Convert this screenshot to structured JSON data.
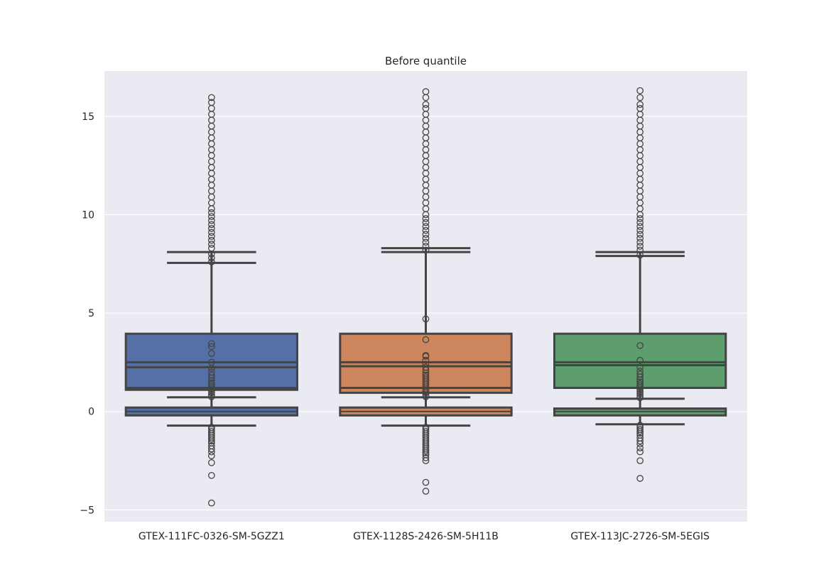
{
  "chart_data": {
    "type": "box",
    "title": "Before quantile",
    "xlabel": "",
    "ylabel": "",
    "ylim": [
      -5.6,
      17.3
    ],
    "yticks": [
      -5,
      0,
      5,
      10,
      15
    ],
    "ytick_labels": [
      "−5",
      "0",
      "5",
      "10",
      "15"
    ],
    "grid": true,
    "legend": "none",
    "box_edge_color": "#444444",
    "plot_background": "#eaeaf2",
    "categories": [
      "GTEX-111FC-0326-SM-5GZZ1",
      "GTEX-1128S-2426-SM-5H11B",
      "GTEX-113JC-2726-SM-5EGIS"
    ],
    "series": [
      {
        "category": "GTEX-111FC-0326-SM-5GZZ1",
        "color": "#5470a6",
        "upper_box": {
          "q1": 1.1,
          "median_low": 2.25,
          "median_high": 2.5,
          "q3": 3.95,
          "q1_inner": 1.2
        },
        "lower_box": {
          "q1": -0.2,
          "median": 0.0,
          "q3": 0.2
        },
        "whisker_high": 8.1,
        "whisker_high_inner": 7.55,
        "whisker_low": -0.72,
        "whisker_mid_low": 0.72,
        "outliers_high": [
          7.6,
          7.8,
          8.0,
          8.3,
          8.5,
          8.7,
          8.9,
          9.1,
          9.3,
          9.5,
          9.7,
          9.9,
          10.1,
          10.3,
          10.6,
          10.9,
          11.2,
          11.5,
          11.8,
          12.1,
          12.4,
          12.7,
          13.0,
          13.3,
          13.6,
          13.9,
          14.2,
          14.5,
          14.8,
          15.1,
          15.4,
          15.7,
          15.95
        ],
        "outliers_mid": [
          0.75,
          0.85,
          0.95,
          1.05,
          1.15,
          1.25,
          1.35,
          1.45,
          1.55,
          1.7,
          1.85,
          2.0,
          2.2,
          2.5,
          2.95,
          3.3,
          3.45
        ],
        "outliers_low": [
          -0.8,
          -0.9,
          -1.0,
          -1.1,
          -1.2,
          -1.3,
          -1.4,
          -1.5,
          -1.6,
          -1.75,
          -1.9,
          -2.05,
          -2.25,
          -2.6,
          -3.25,
          -4.65
        ]
      },
      {
        "category": "GTEX-1128S-2426-SM-5H11B",
        "color": "#cd865e",
        "upper_box": {
          "q1": 0.95,
          "median_low": 2.3,
          "median_high": 2.5,
          "q3": 3.95,
          "q1_inner": 1.2
        },
        "lower_box": {
          "q1": -0.2,
          "median": 0.0,
          "q3": 0.2
        },
        "whisker_high": 8.3,
        "whisker_high_inner": 8.1,
        "whisker_low": -0.72,
        "whisker_mid_low": 0.72,
        "outliers_high": [
          8.2,
          8.4,
          8.6,
          8.8,
          9.0,
          9.2,
          9.4,
          9.6,
          9.8,
          10.0,
          10.3,
          10.6,
          10.9,
          11.2,
          11.5,
          11.8,
          12.1,
          12.4,
          12.7,
          13.0,
          13.3,
          13.6,
          13.9,
          14.2,
          14.5,
          14.8,
          15.1,
          15.4,
          15.6,
          15.95,
          16.25
        ],
        "outliers_mid": [
          0.75,
          0.85,
          0.95,
          1.05,
          1.15,
          1.25,
          1.35,
          1.45,
          1.55,
          1.65,
          1.75,
          1.85,
          1.95,
          2.1,
          2.25,
          2.4,
          2.6,
          2.8,
          2.85,
          3.65,
          4.7
        ],
        "outliers_low": [
          -0.8,
          -0.9,
          -1.0,
          -1.1,
          -1.2,
          -1.3,
          -1.4,
          -1.5,
          -1.6,
          -1.7,
          -1.8,
          -1.9,
          -2.0,
          -2.1,
          -2.2,
          -2.35,
          -2.5,
          -3.6,
          -4.05
        ]
      },
      {
        "category": "GTEX-113JC-2726-SM-5EGIS",
        "color": "#5e9e6e",
        "upper_box": {
          "q1": 1.2,
          "median_low": 2.35,
          "median_high": 2.5,
          "q3": 3.95,
          "q1_inner": 1.2
        },
        "lower_box": {
          "q1": -0.2,
          "median": 0.0,
          "q3": 0.15
        },
        "whisker_high": 8.1,
        "whisker_high_inner": 7.9,
        "whisker_low": -0.65,
        "whisker_mid_low": 0.65,
        "outliers_high": [
          7.95,
          8.2,
          8.4,
          8.6,
          8.8,
          9.0,
          9.2,
          9.4,
          9.6,
          9.8,
          10.0,
          10.3,
          10.6,
          10.9,
          11.2,
          11.5,
          11.8,
          12.1,
          12.4,
          12.7,
          13.0,
          13.3,
          13.6,
          13.9,
          14.2,
          14.5,
          14.8,
          15.1,
          15.4,
          15.6,
          15.95,
          16.3
        ],
        "outliers_mid": [
          0.7,
          0.8,
          0.9,
          1.0,
          1.1,
          1.2,
          1.3,
          1.4,
          1.5,
          1.6,
          1.75,
          1.9,
          2.05,
          2.25,
          2.6,
          3.35
        ],
        "outliers_low": [
          -0.7,
          -0.8,
          -0.9,
          -1.0,
          -1.1,
          -1.2,
          -1.35,
          -1.5,
          -1.65,
          -1.85,
          -2.05,
          -2.5,
          -3.4
        ]
      }
    ]
  }
}
